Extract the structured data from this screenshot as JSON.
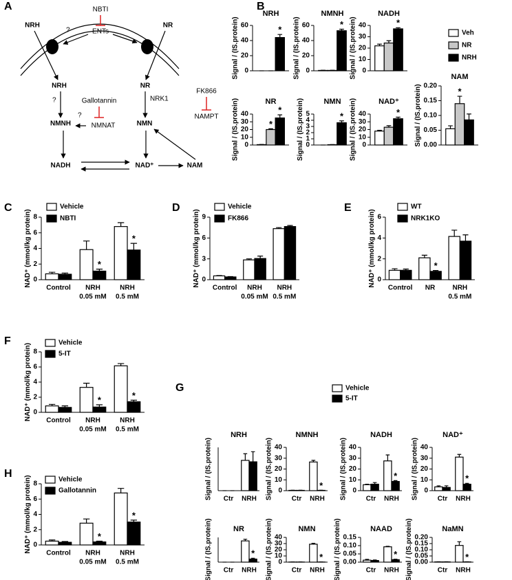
{
  "diagram": {
    "panel": "A",
    "nbti": "NBTI",
    "ents": "ENTs",
    "nrh_out": "NRH",
    "nr_out": "NR",
    "q1": "?",
    "nrh_in": "NRH",
    "nr_in": "NR",
    "q2": "?",
    "nrk1": "NRK1",
    "gallotannin": "Gallotannin",
    "nmnh": "NMNH",
    "nmn": "NMN",
    "q3": "?",
    "nmnat": "NMNAT",
    "fk866": "FK866",
    "nampt": "NAMPT",
    "nadh": "NADH",
    "nad": "NAD⁺",
    "nam": "NAM"
  },
  "chart_data": [
    {
      "type": "bar",
      "panel": "B",
      "title": "NRH",
      "ylabel": "Signal / (IS.protein)",
      "ylim": [
        0,
        60
      ],
      "yticks": [
        0,
        20,
        40,
        60
      ],
      "series": [
        {
          "color": "#ffffff",
          "values": [
            0
          ],
          "errors": [
            0
          ],
          "labels": [
            null
          ]
        },
        {
          "color": "#c8c8c8",
          "values": [
            0
          ],
          "errors": [
            0
          ],
          "labels": [
            null
          ]
        },
        {
          "color": "#000000",
          "values": [
            44
          ],
          "errors": [
            4
          ],
          "labels": [
            "*"
          ]
        }
      ]
    },
    {
      "type": "bar",
      "title": "NMNH",
      "ylabel": "Signal / (IS.protein)",
      "ylim": [
        0,
        60
      ],
      "yticks": [
        0,
        20,
        40,
        60
      ],
      "series": [
        {
          "color": "#ffffff",
          "values": [
            0.5
          ],
          "errors": [
            0.2
          ],
          "labels": [
            null
          ]
        },
        {
          "color": "#c8c8c8",
          "values": [
            0.5
          ],
          "errors": [
            0.2
          ],
          "labels": [
            null
          ]
        },
        {
          "color": "#000000",
          "values": [
            53
          ],
          "errors": [
            2
          ],
          "labels": [
            "*"
          ]
        }
      ]
    },
    {
      "type": "bar",
      "title": "NADH",
      "ylabel": "Signal / (IS.protein)",
      "ylim": [
        0,
        40
      ],
      "yticks": [
        0,
        10,
        20,
        30,
        40
      ],
      "series": [
        {
          "name": "Veh",
          "color": "#ffffff",
          "values": [
            22
          ],
          "errors": [
            1.5
          ],
          "labels": [
            null
          ]
        },
        {
          "name": "NR",
          "color": "#c8c8c8",
          "values": [
            24.5
          ],
          "errors": [
            2
          ],
          "labels": [
            null
          ]
        },
        {
          "name": "NRH",
          "color": "#000000",
          "values": [
            37
          ],
          "errors": [
            1
          ],
          "labels": [
            "*"
          ]
        }
      ]
    },
    {
      "type": "bar",
      "title": "NR",
      "ylabel": "Signal / (IS.protein)",
      "ylim": [
        0,
        40
      ],
      "yticks": [
        0,
        10,
        20,
        30,
        40
      ],
      "series": [
        {
          "color": "#ffffff",
          "values": [
            0.5
          ],
          "errors": [
            0.2
          ],
          "labels": [
            null
          ]
        },
        {
          "color": "#c8c8c8",
          "values": [
            20
          ],
          "errors": [
            1
          ],
          "labels": [
            "*"
          ]
        },
        {
          "color": "#000000",
          "values": [
            35
          ],
          "errors": [
            4
          ],
          "labels": [
            "*"
          ]
        }
      ]
    },
    {
      "type": "bar",
      "title": "NMN",
      "ylabel": "Signal / (IS.protein)",
      "ylim": [
        0,
        5
      ],
      "yticks": [
        0,
        1,
        2,
        3,
        4,
        5
      ],
      "series": [
        {
          "color": "#ffffff",
          "values": [
            0
          ],
          "errors": [
            0
          ],
          "labels": [
            null
          ]
        },
        {
          "color": "#c8c8c8",
          "values": [
            0.05
          ],
          "errors": [
            0.02
          ],
          "labels": [
            null
          ]
        },
        {
          "color": "#000000",
          "values": [
            3.6
          ],
          "errors": [
            0.3
          ],
          "labels": [
            "*"
          ]
        }
      ]
    },
    {
      "type": "bar",
      "title": "NAD⁺",
      "ylabel": "Signal / (IS.protein)",
      "ylim": [
        0,
        40
      ],
      "yticks": [
        0,
        10,
        20,
        30,
        40
      ],
      "series": [
        {
          "color": "#ffffff",
          "values": [
            18
          ],
          "errors": [
            1
          ],
          "labels": [
            null
          ]
        },
        {
          "color": "#c8c8c8",
          "values": [
            23
          ],
          "errors": [
            2
          ],
          "labels": [
            null
          ]
        },
        {
          "color": "#000000",
          "values": [
            34
          ],
          "errors": [
            2
          ],
          "labels": [
            "*"
          ]
        }
      ]
    },
    {
      "type": "bar",
      "title": "NAM",
      "ylabel": "Signal / (IS.protein)",
      "ylim": [
        0,
        0.2
      ],
      "yticks": [
        {
          "value": 0,
          "label": "0.00"
        },
        0.05,
        {
          "value": 0.1,
          "label": "0.10"
        },
        0.15,
        {
          "value": 0.2,
          "label": "0.20"
        }
      ],
      "series": [
        {
          "color": "#ffffff",
          "values": [
            0.055
          ],
          "errors": [
            0.01
          ],
          "labels": [
            null
          ]
        },
        {
          "color": "#c8c8c8",
          "values": [
            0.14
          ],
          "errors": [
            0.025
          ],
          "labels": [
            "*"
          ]
        },
        {
          "color": "#000000",
          "values": [
            0.085
          ],
          "errors": [
            0.02
          ],
          "labels": [
            null
          ]
        }
      ]
    },
    {
      "type": "bar",
      "panel": "C",
      "ylabel": "NAD⁺ (mmol/kg protein)",
      "ylim": [
        0,
        8
      ],
      "yticks": [
        0,
        2,
        4,
        6,
        8
      ],
      "categories": [
        [
          "Control"
        ],
        [
          "NRH",
          "0.05 mM"
        ],
        [
          "NRH",
          "0.5 mM"
        ]
      ],
      "series": [
        {
          "name": "Vehicle",
          "color": "#ffffff",
          "values": [
            0.75,
            3.85,
            6.8
          ],
          "errors": [
            0.2,
            1.1,
            0.5
          ],
          "labels": [
            null,
            null,
            null
          ]
        },
        {
          "name": "NBTI",
          "color": "#000000",
          "values": [
            0.7,
            1.1,
            3.8
          ],
          "errors": [
            0.15,
            0.25,
            0.85
          ],
          "labels": [
            null,
            "*",
            "*"
          ]
        }
      ]
    },
    {
      "type": "bar",
      "panel": "D",
      "ylabel": "NAD⁺ (mmol/kg protein)",
      "ylim": [
        0,
        9
      ],
      "yticks": [
        0,
        3,
        6,
        9
      ],
      "categories": [
        [
          "Control"
        ],
        [
          "NRH",
          "0.05 mM"
        ],
        [
          "NRH",
          "0.5 mM"
        ]
      ],
      "series": [
        {
          "name": "Vehicle",
          "color": "#ffffff",
          "values": [
            0.55,
            2.85,
            7.35
          ],
          "errors": [
            0.05,
            0.15,
            0.15
          ],
          "labels": [
            null,
            null,
            null
          ]
        },
        {
          "name": "FK866",
          "color": "#000000",
          "values": [
            0.4,
            3.05,
            7.65
          ],
          "errors": [
            0.05,
            0.35,
            0.15
          ],
          "labels": [
            null,
            null,
            null
          ]
        }
      ]
    },
    {
      "type": "bar",
      "panel": "E",
      "ylabel": "NAD⁺ (mmol/kg protein)",
      "ylim": [
        0,
        6
      ],
      "yticks": [
        0,
        2,
        4,
        6
      ],
      "categories": [
        [
          "Control"
        ],
        [
          "NR"
        ],
        [
          "NRH",
          "0.5 mM"
        ]
      ],
      "series": [
        {
          "name": "WT",
          "color": "#ffffff",
          "values": [
            0.9,
            2.1,
            4.15
          ],
          "errors": [
            0.15,
            0.25,
            0.6
          ],
          "labels": [
            null,
            null,
            null
          ]
        },
        {
          "name": "NRK1KO",
          "color": "#000000",
          "values": [
            0.9,
            0.8,
            3.7
          ],
          "errors": [
            0.12,
            0.08,
            0.6
          ],
          "labels": [
            null,
            "*",
            null
          ]
        }
      ]
    },
    {
      "type": "bar",
      "panel": "F",
      "ylabel": "NAD⁺ (mmol/kg protein)",
      "ylim": [
        0,
        8
      ],
      "yticks": [
        0,
        2,
        4,
        6,
        8
      ],
      "categories": [
        [
          "Control"
        ],
        [
          "NRH",
          "0.05 mM"
        ],
        [
          "NRH",
          "0.5 mM"
        ]
      ],
      "series": [
        {
          "name": "Vehicle",
          "color": "#ffffff",
          "values": [
            0.85,
            3.3,
            6.15
          ],
          "errors": [
            0.2,
            0.55,
            0.3
          ],
          "labels": [
            null,
            null,
            null
          ]
        },
        {
          "name": "5-IT",
          "color": "#000000",
          "values": [
            0.65,
            0.7,
            1.4
          ],
          "errors": [
            0.2,
            0.3,
            0.2
          ],
          "labels": [
            null,
            "*",
            "*"
          ]
        }
      ]
    },
    {
      "type": "bar",
      "panel": "G",
      "title": "NRH",
      "ylabel": "Signal / (IS.protein)",
      "ylim": [
        0,
        15
      ],
      "categories": [
        [
          "Ctr"
        ],
        [
          "NRH"
        ]
      ],
      "series": [
        {
          "name": "Vehicle",
          "color": "#ffffff",
          "values": [
            0,
            10.5
          ],
          "errors": [
            0,
            2.3
          ],
          "labels": [
            null,
            null
          ]
        },
        {
          "name": "5-IT",
          "color": "#000000",
          "values": [
            0,
            10
          ],
          "errors": [
            0,
            3.5
          ],
          "labels": [
            null,
            null
          ]
        }
      ]
    },
    {
      "type": "bar",
      "title": "NMNH",
      "ylabel": "Signal / (IS.protein)",
      "ylim": [
        0,
        40
      ],
      "yticks": [
        0,
        10,
        20,
        30,
        40
      ],
      "categories": [
        [
          "Ctr"
        ],
        [
          "NRH"
        ]
      ],
      "series": [
        {
          "color": "#ffffff",
          "values": [
            0.3,
            26.5
          ],
          "errors": [
            0.1,
            1.5
          ],
          "labels": [
            null,
            null
          ]
        },
        {
          "color": "#000000",
          "values": [
            0.3,
            0.3
          ],
          "errors": [
            0.1,
            0.1
          ],
          "labels": [
            null,
            "*"
          ]
        }
      ]
    },
    {
      "type": "bar",
      "title": "NADH",
      "ylabel": "Signal / (IS.protein)",
      "ylim": [
        0,
        40
      ],
      "yticks": [
        0,
        10,
        20,
        30,
        40
      ],
      "categories": [
        [
          "Ctr"
        ],
        [
          "NRH"
        ]
      ],
      "series": [
        {
          "color": "#ffffff",
          "values": [
            5.5,
            27.5
          ],
          "errors": [
            0.5,
            5.5
          ],
          "labels": [
            null,
            null
          ]
        },
        {
          "color": "#000000",
          "values": [
            6,
            8.5
          ],
          "errors": [
            1.5,
            0.8
          ],
          "labels": [
            null,
            "*"
          ]
        }
      ]
    },
    {
      "type": "bar",
      "title": "NAD⁺",
      "ylabel": "Signal / (IS.protein)",
      "ylim": [
        0,
        40
      ],
      "yticks": [
        0,
        10,
        20,
        30,
        40
      ],
      "categories": [
        [
          "Ctr"
        ],
        [
          "NRH"
        ]
      ],
      "series": [
        {
          "color": "#ffffff",
          "values": [
            3.5,
            31
          ],
          "errors": [
            1,
            2.5
          ],
          "labels": [
            null,
            null
          ]
        },
        {
          "color": "#000000",
          "values": [
            3,
            6
          ],
          "errors": [
            1.5,
            0.8
          ],
          "labels": [
            null,
            "*"
          ]
        }
      ]
    },
    {
      "type": "bar",
      "title": "NR",
      "ylabel": "Signal / (IS.protein)",
      "ylim": [
        0,
        12
      ],
      "categories": [
        [
          "Ctr"
        ],
        [
          "NRH"
        ]
      ],
      "series": [
        {
          "color": "#ffffff",
          "values": [
            0,
            10.3
          ],
          "errors": [
            0,
            0.8
          ],
          "labels": [
            null,
            null
          ]
        },
        {
          "color": "#000000",
          "values": [
            0,
            1.5
          ],
          "errors": [
            0,
            0.4
          ],
          "labels": [
            null,
            "*"
          ]
        }
      ]
    },
    {
      "type": "bar",
      "title": "NMN",
      "ylabel": "Signal / (IS.protein)",
      "ylim": [
        0,
        40
      ],
      "yticks": [
        0,
        10,
        20,
        30,
        40
      ],
      "categories": [
        [
          "Ctr"
        ],
        [
          "NRH"
        ]
      ],
      "series": [
        {
          "color": "#ffffff",
          "values": [
            0.2,
            29
          ],
          "errors": [
            0.1,
            1.5
          ],
          "labels": [
            null,
            null
          ]
        },
        {
          "color": "#000000",
          "values": [
            0.2,
            0.2
          ],
          "errors": [
            0.1,
            0.1
          ],
          "labels": [
            null,
            "*"
          ]
        }
      ]
    },
    {
      "type": "bar",
      "title": "NAAD",
      "ylabel": "Signal / (IS.protein)",
      "ylim": [
        0,
        0.15
      ],
      "yticks": [
        {
          "value": 0,
          "label": "0.00"
        },
        0.05,
        {
          "value": 0.1,
          "label": "0.10"
        },
        0.15
      ],
      "categories": [
        [
          "Ctr"
        ],
        [
          "NRH"
        ]
      ],
      "series": [
        {
          "color": "#ffffff",
          "values": [
            0.012,
            0.093
          ],
          "errors": [
            0.005,
            0.003
          ],
          "labels": [
            null,
            null
          ]
        },
        {
          "color": "#000000",
          "values": [
            0.01,
            0.015
          ],
          "errors": [
            0.003,
            0.003
          ],
          "labels": [
            null,
            "*"
          ]
        }
      ]
    },
    {
      "type": "bar",
      "title": "NaMN",
      "ylabel": "Signal / (IS.protein)",
      "ylim": [
        0,
        0.2
      ],
      "yticks": [
        {
          "value": 0,
          "label": "0.00"
        },
        0.05,
        {
          "value": 0.1,
          "label": "0.10"
        },
        0.15,
        {
          "value": 0.2,
          "label": "0.20"
        }
      ],
      "categories": [
        [
          "Ctr"
        ],
        [
          "NRH"
        ]
      ],
      "series": [
        {
          "color": "#ffffff",
          "values": [
            0.002,
            0.135
          ],
          "errors": [
            0.001,
            0.03
          ],
          "labels": [
            null,
            null
          ]
        },
        {
          "color": "#000000",
          "values": [
            0.002,
            0.002
          ],
          "errors": [
            0.001,
            0.001
          ],
          "labels": [
            null,
            "*"
          ]
        }
      ]
    },
    {
      "type": "bar",
      "panel": "H",
      "ylabel": "NAD⁺ (mmol/kg protein)",
      "ylim": [
        0,
        8
      ],
      "yticks": [
        0,
        2,
        4,
        6,
        8
      ],
      "categories": [
        [
          "Control"
        ],
        [
          "NRH",
          "0.05 mM"
        ],
        [
          "NRH",
          "0.5 mM"
        ]
      ],
      "series": [
        {
          "name": "Vehicle",
          "color": "#ffffff",
          "values": [
            0.5,
            2.85,
            6.8
          ],
          "errors": [
            0.15,
            0.55,
            0.6
          ],
          "labels": [
            null,
            null,
            null
          ]
        },
        {
          "name": "Gallotannin",
          "color": "#000000",
          "values": [
            0.35,
            0.4,
            3.0
          ],
          "errors": [
            0.1,
            0.1,
            0.25
          ],
          "labels": [
            null,
            "*",
            "*"
          ]
        }
      ]
    }
  ]
}
